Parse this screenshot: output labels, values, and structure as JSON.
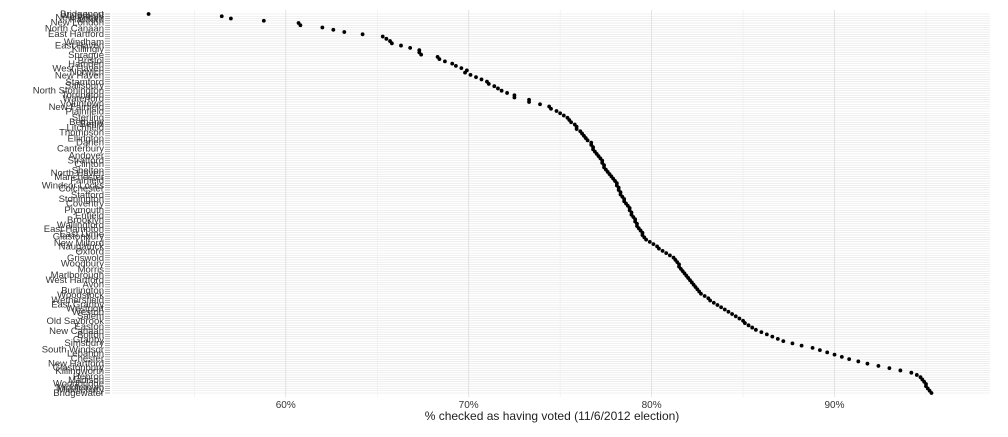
{
  "chart_data": {
    "type": "scatter",
    "title": "",
    "xlabel": "% checked as having voted (11/6/2012 election)",
    "ylabel": "",
    "xlim": [
      50.5,
      98.5
    ],
    "xticks": [
      60,
      70,
      80,
      90
    ],
    "xtick_labels": [
      "60%",
      "70%",
      "80%",
      "90%"
    ],
    "grid": "x-major and x-minor vertical lines, one horizontal line per row",
    "legend": "none",
    "point_color": "#000000",
    "visible_labels": [
      {
        "row": 1,
        "text": "Bridgeport"
      },
      {
        "row": 3,
        "text": "Waterbury"
      },
      {
        "row": 6,
        "text": "New Britain"
      },
      {
        "row": 9,
        "text": "Hartford"
      },
      {
        "row": 13,
        "text": "New London"
      },
      {
        "row": 21,
        "text": "North Canaan"
      },
      {
        "row": 29,
        "text": "East Hartford"
      },
      {
        "row": 40,
        "text": "Windham"
      },
      {
        "row": 45,
        "text": "East Haven"
      },
      {
        "row": 50,
        "text": "Killingly"
      },
      {
        "row": 58,
        "text": "Sprague"
      },
      {
        "row": 66,
        "text": "Bristol"
      },
      {
        "row": 71,
        "text": "Hamden"
      },
      {
        "row": 77,
        "text": "West Haven"
      },
      {
        "row": 82,
        "text": "Norwich"
      },
      {
        "row": 87,
        "text": "New Haven"
      },
      {
        "row": 96,
        "text": "Stamford"
      },
      {
        "row": 101,
        "text": "Salisbury"
      },
      {
        "row": 108,
        "text": "North Stonington"
      },
      {
        "row": 114,
        "text": "Torrington"
      },
      {
        "row": 119,
        "text": "Waterford"
      },
      {
        "row": 126,
        "text": "Voluntown"
      },
      {
        "row": 131,
        "text": "New Fairfield"
      },
      {
        "row": 137,
        "text": "Plainfield"
      },
      {
        "row": 146,
        "text": "Sterling"
      },
      {
        "row": 152,
        "text": "Bethany"
      },
      {
        "row": 155,
        "text": "Berlin"
      },
      {
        "row": 160,
        "text": "Litchfield"
      },
      {
        "row": 167,
        "text": "Thompson"
      },
      {
        "row": 175,
        "text": "Ellington"
      },
      {
        "row": 181,
        "text": "Darien"
      },
      {
        "row": 189,
        "text": "Canterbury"
      },
      {
        "row": 199,
        "text": "Andover"
      },
      {
        "row": 206,
        "text": "Stratford"
      },
      {
        "row": 211,
        "text": "Clinton"
      },
      {
        "row": 220,
        "text": "Shelton"
      },
      {
        "row": 223,
        "text": "North Haven"
      },
      {
        "row": 229,
        "text": "Manchester"
      },
      {
        "row": 234,
        "text": "Fairfield"
      },
      {
        "row": 241,
        "text": "Windsor Locks"
      },
      {
        "row": 245,
        "text": "Colchester"
      },
      {
        "row": 254,
        "text": "Stafford"
      },
      {
        "row": 260,
        "text": "Stonington"
      },
      {
        "row": 266,
        "text": "Coventry"
      },
      {
        "row": 275,
        "text": "Plymouth"
      },
      {
        "row": 283,
        "text": "Enfield"
      },
      {
        "row": 289,
        "text": "Brooklyn"
      },
      {
        "row": 296,
        "text": "Wallingford"
      },
      {
        "row": 302,
        "text": "East Hampton"
      },
      {
        "row": 309,
        "text": "East Lyme"
      },
      {
        "row": 312,
        "text": "Glastonbury"
      },
      {
        "row": 321,
        "text": "New Milford"
      },
      {
        "row": 326,
        "text": "Naugatuck"
      },
      {
        "row": 333,
        "text": "Oxford"
      },
      {
        "row": 342,
        "text": "Griswold"
      },
      {
        "row": 350,
        "text": "Woodbury"
      },
      {
        "row": 358,
        "text": "Morris"
      },
      {
        "row": 366,
        "text": "Marlborough"
      },
      {
        "row": 373,
        "text": "West Hartford"
      },
      {
        "row": 379,
        "text": "Avon"
      },
      {
        "row": 388,
        "text": "Burlington"
      },
      {
        "row": 394,
        "text": "Woodstock"
      },
      {
        "row": 401,
        "text": "Wethersfield"
      },
      {
        "row": 407,
        "text": "East Granby"
      },
      {
        "row": 413,
        "text": "Westport"
      },
      {
        "row": 418,
        "text": "Weston"
      },
      {
        "row": 423,
        "text": "Salem"
      },
      {
        "row": 430,
        "text": "Old Saybrook"
      },
      {
        "row": 438,
        "text": "Easton"
      },
      {
        "row": 444,
        "text": "New Canaan"
      },
      {
        "row": 450,
        "text": "Bolton"
      },
      {
        "row": 456,
        "text": "Granby"
      },
      {
        "row": 461,
        "text": "Simsbury"
      },
      {
        "row": 470,
        "text": "South Windsor"
      },
      {
        "row": 476,
        "text": "Lebanon"
      },
      {
        "row": 483,
        "text": "Chester"
      },
      {
        "row": 490,
        "text": "New Hartford"
      },
      {
        "row": 495,
        "text": "Glastonbury"
      },
      {
        "row": 500,
        "text": "Killingworth"
      },
      {
        "row": 508,
        "text": "Hebron"
      },
      {
        "row": 513,
        "text": "Madison"
      },
      {
        "row": 518,
        "text": "Woodbridge"
      },
      {
        "row": 523,
        "text": "Middletown"
      },
      {
        "row": 526,
        "text": "Middlebury"
      },
      {
        "row": 531,
        "text": "Bridgewater"
      }
    ],
    "row_count": 169,
    "x": [
      52.5,
      56.5,
      57.0,
      58.8,
      60.7,
      60.8,
      62.0,
      62.6,
      63.2,
      64.2,
      65.3,
      65.5,
      65.7,
      65.8,
      66.3,
      66.8,
      67.3,
      67.3,
      67.4,
      68.3,
      68.4,
      68.7,
      69.1,
      69.3,
      69.6,
      69.9,
      69.8,
      70.1,
      70.4,
      70.7,
      71.0,
      71.1,
      71.4,
      71.6,
      71.8,
      72.1,
      72.5,
      72.5,
      73.3,
      73.3,
      73.9,
      74.4,
      74.5,
      74.8,
      75.0,
      75.2,
      75.4,
      75.5,
      75.6,
      75.8,
      75.9,
      75.9,
      76.1,
      76.2,
      76.3,
      76.4,
      76.5,
      76.7,
      76.7,
      76.8,
      76.8,
      76.9,
      77.0,
      77.1,
      77.2,
      77.3,
      77.3,
      77.4,
      77.4,
      77.5,
      77.6,
      77.7,
      77.8,
      77.9,
      78.0,
      78.1,
      78.1,
      78.2,
      78.2,
      78.3,
      78.3,
      78.4,
      78.5,
      78.5,
      78.6,
      78.7,
      78.8,
      78.8,
      78.9,
      78.9,
      79.0,
      79.1,
      79.1,
      79.2,
      79.2,
      79.3,
      79.4,
      79.5,
      79.5,
      79.6,
      79.7,
      79.9,
      80.1,
      80.3,
      80.4,
      80.6,
      80.8,
      81.0,
      81.2,
      81.3,
      81.4,
      81.5,
      81.5,
      81.6,
      81.7,
      81.8,
      81.9,
      82.0,
      82.1,
      82.2,
      82.3,
      82.4,
      82.5,
      82.6,
      82.7,
      82.9,
      83.1,
      83.2,
      83.4,
      83.6,
      83.8,
      84.0,
      84.2,
      84.4,
      84.6,
      84.8,
      85.0,
      85.1,
      85.3,
      85.5,
      85.7,
      86.0,
      86.3,
      86.6,
      86.9,
      87.2,
      87.7,
      88.2,
      88.8,
      89.2,
      89.6,
      90.0,
      90.4,
      90.8,
      91.3,
      91.8,
      92.4,
      93.0,
      93.6,
      94.2,
      94.5,
      94.7,
      94.8,
      94.9,
      95.0,
      95.0,
      95.1,
      95.2,
      95.3
    ]
  }
}
